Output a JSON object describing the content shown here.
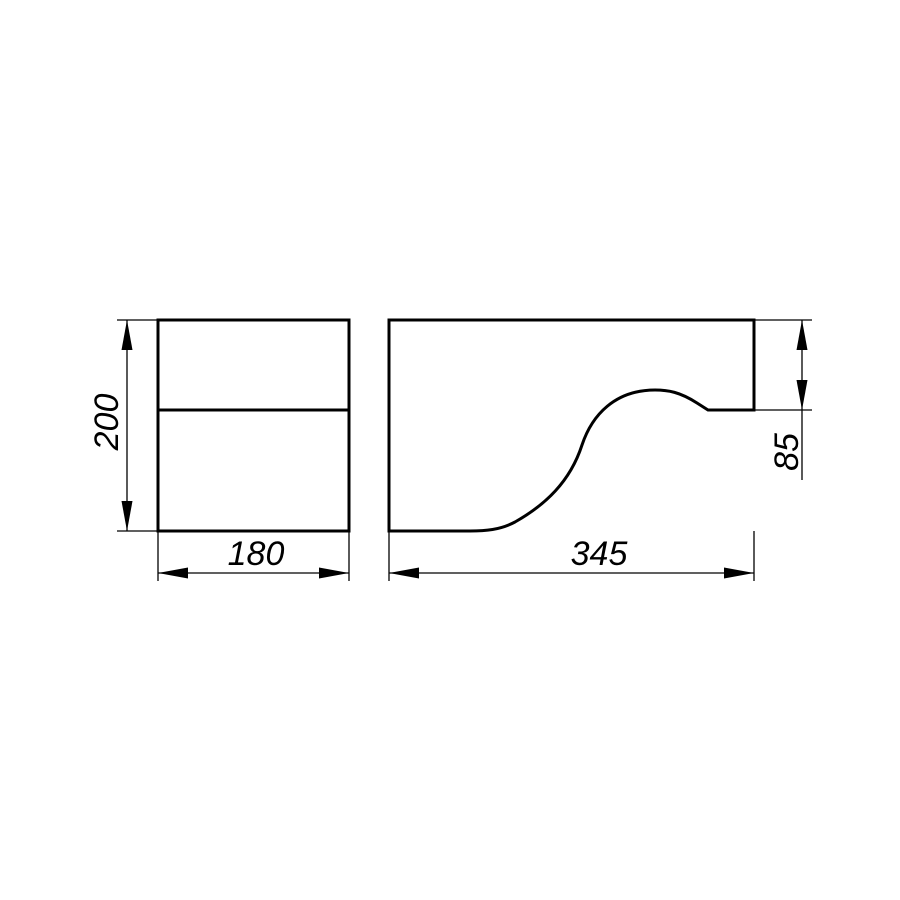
{
  "dimensions": {
    "front_width": "180",
    "front_height": "200",
    "side_length": "345",
    "side_step_height": "85"
  },
  "colors": {
    "stroke": "#000000",
    "background": "#ffffff"
  }
}
